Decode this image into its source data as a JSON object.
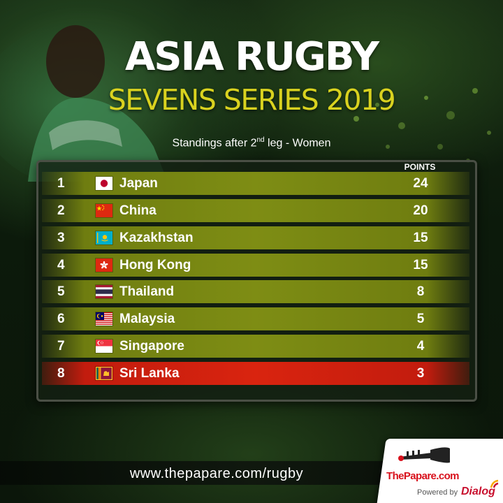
{
  "title": {
    "line1": "ASIA RUGBY",
    "line2": "SEVENS SERIES 2019"
  },
  "subtitle": {
    "before": "Standings after 2",
    "sup": "nd",
    "after": " leg - Women"
  },
  "table": {
    "points_header": "POINTS",
    "rows": [
      {
        "rank": "1",
        "country": "Japan",
        "flag_icon": "japan-flag-icon",
        "points": "24"
      },
      {
        "rank": "2",
        "country": "China",
        "flag_icon": "china-flag-icon",
        "points": "20"
      },
      {
        "rank": "3",
        "country": "Kazakhstan",
        "flag_icon": "kazakhstan-flag-icon",
        "points": "15"
      },
      {
        "rank": "4",
        "country": "Hong Kong",
        "flag_icon": "hong-kong-flag-icon",
        "points": "15"
      },
      {
        "rank": "5",
        "country": "Thailand",
        "flag_icon": "thailand-flag-icon",
        "points": "8"
      },
      {
        "rank": "6",
        "country": "Malaysia",
        "flag_icon": "malaysia-flag-icon",
        "points": "5"
      },
      {
        "rank": "7",
        "country": "Singapore",
        "flag_icon": "singapore-flag-icon",
        "points": "4"
      },
      {
        "rank": "8",
        "country": "Sri Lanka",
        "flag_icon": "sri-lanka-flag-icon",
        "points": "3",
        "highlighted": true
      }
    ]
  },
  "footer": {
    "url": "www.thepapare.com/rugby",
    "brand": "ThePapare.com",
    "powered_by": "Powered by",
    "sponsor": "Dialog"
  },
  "colors": {
    "title_white": "#ffffff",
    "title_yellow": "#d9d21f",
    "row_olive": "#7e8d14",
    "row_highlight_red": "#d9240f",
    "brand_red": "#d8111c"
  }
}
